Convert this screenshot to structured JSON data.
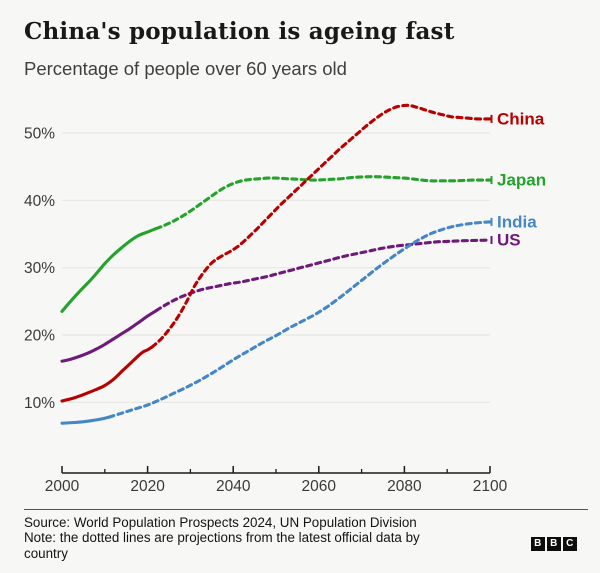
{
  "report": {
    "title": "China's population is ageing fast",
    "subtitle": "Percentage of people over 60 years old"
  },
  "footer": {
    "source": "Source: World Population Prospects 2024, UN Population Division",
    "note_lines": [
      "Note: the dotted lines are projections from the latest official data by",
      "country"
    ],
    "logo_letters": [
      "B",
      "B",
      "C"
    ]
  },
  "chart_data": {
    "type": "line",
    "title": "China's population is ageing fast",
    "ylabel": "Percentage of people over 60 years old",
    "x_range": [
      2000,
      2100
    ],
    "y_range": [
      10,
      50
    ],
    "grid": true,
    "legend_position": "right-edge-labels",
    "note": "Solid segments are historical data; dashed segments are projections.",
    "colors": {
      "grid": "#e6e6e2",
      "axis": "#1a1a1a",
      "tick_text": "#3a3a3a"
    },
    "y_ticks": [
      {
        "value": 10,
        "label": "10%"
      },
      {
        "value": 20,
        "label": "20%"
      },
      {
        "value": 30,
        "label": "30%"
      },
      {
        "value": 40,
        "label": "40%"
      },
      {
        "value": 50,
        "label": "50%"
      }
    ],
    "x_major_ticks": [
      {
        "value": 2000,
        "label": "2000"
      },
      {
        "value": 2020,
        "label": "2020"
      },
      {
        "value": 2040,
        "label": "2040"
      },
      {
        "value": 2060,
        "label": "2060"
      },
      {
        "value": 2080,
        "label": "2080"
      },
      {
        "value": 2100,
        "label": "2100"
      }
    ],
    "x_minor_ticks": [
      2010,
      2030,
      2050,
      2070,
      2090
    ],
    "series": [
      {
        "name": "US",
        "color": "#6f1a7a",
        "solid_until": 2022,
        "points": [
          [
            2000,
            16.1
          ],
          [
            2002,
            16.4
          ],
          [
            2004,
            16.8
          ],
          [
            2006,
            17.3
          ],
          [
            2008,
            17.9
          ],
          [
            2010,
            18.6
          ],
          [
            2012,
            19.4
          ],
          [
            2014,
            20.2
          ],
          [
            2016,
            21.0
          ],
          [
            2018,
            21.9
          ],
          [
            2020,
            22.8
          ],
          [
            2022,
            23.6
          ],
          [
            2024,
            24.4
          ],
          [
            2026,
            25.1
          ],
          [
            2028,
            25.7
          ],
          [
            2030,
            26.2
          ],
          [
            2033,
            26.8
          ],
          [
            2036,
            27.2
          ],
          [
            2039,
            27.6
          ],
          [
            2042,
            27.9
          ],
          [
            2045,
            28.3
          ],
          [
            2048,
            28.7
          ],
          [
            2051,
            29.2
          ],
          [
            2054,
            29.7
          ],
          [
            2057,
            30.2
          ],
          [
            2060,
            30.7
          ],
          [
            2063,
            31.2
          ],
          [
            2066,
            31.7
          ],
          [
            2069,
            32.1
          ],
          [
            2072,
            32.5
          ],
          [
            2075,
            32.9
          ],
          [
            2078,
            33.2
          ],
          [
            2081,
            33.4
          ],
          [
            2084,
            33.6
          ],
          [
            2087,
            33.8
          ],
          [
            2090,
            33.9
          ],
          [
            2094,
            34.0
          ],
          [
            2100,
            34.1
          ]
        ]
      },
      {
        "name": "Japan",
        "color": "#24a22c",
        "solid_until": 2022,
        "points": [
          [
            2000,
            23.5
          ],
          [
            2002,
            25.0
          ],
          [
            2004,
            26.4
          ],
          [
            2006,
            27.7
          ],
          [
            2008,
            29.1
          ],
          [
            2010,
            30.6
          ],
          [
            2012,
            31.9
          ],
          [
            2014,
            33.0
          ],
          [
            2016,
            34.0
          ],
          [
            2018,
            34.8
          ],
          [
            2020,
            35.3
          ],
          [
            2022,
            35.8
          ],
          [
            2024,
            36.3
          ],
          [
            2026,
            36.9
          ],
          [
            2028,
            37.6
          ],
          [
            2030,
            38.4
          ],
          [
            2032,
            39.3
          ],
          [
            2034,
            40.2
          ],
          [
            2036,
            41.1
          ],
          [
            2038,
            41.9
          ],
          [
            2040,
            42.5
          ],
          [
            2042,
            42.9
          ],
          [
            2044,
            43.1
          ],
          [
            2046,
            43.2
          ],
          [
            2048,
            43.3
          ],
          [
            2050,
            43.3
          ],
          [
            2053,
            43.2
          ],
          [
            2056,
            43.1
          ],
          [
            2059,
            43.0
          ],
          [
            2062,
            43.1
          ],
          [
            2065,
            43.2
          ],
          [
            2068,
            43.4
          ],
          [
            2071,
            43.5
          ],
          [
            2074,
            43.5
          ],
          [
            2077,
            43.4
          ],
          [
            2080,
            43.3
          ],
          [
            2083,
            43.1
          ],
          [
            2086,
            42.9
          ],
          [
            2089,
            42.9
          ],
          [
            2092,
            42.9
          ],
          [
            2096,
            43.0
          ],
          [
            2100,
            43.0
          ]
        ]
      },
      {
        "name": "India",
        "color": "#4586c6",
        "solid_until": 2011,
        "points": [
          [
            2000,
            6.9
          ],
          [
            2003,
            7.0
          ],
          [
            2006,
            7.2
          ],
          [
            2009,
            7.5
          ],
          [
            2011,
            7.8
          ],
          [
            2014,
            8.4
          ],
          [
            2017,
            9.0
          ],
          [
            2020,
            9.6
          ],
          [
            2023,
            10.4
          ],
          [
            2026,
            11.3
          ],
          [
            2029,
            12.2
          ],
          [
            2032,
            13.2
          ],
          [
            2035,
            14.3
          ],
          [
            2038,
            15.5
          ],
          [
            2041,
            16.7
          ],
          [
            2044,
            17.8
          ],
          [
            2047,
            18.9
          ],
          [
            2050,
            19.9
          ],
          [
            2053,
            21.0
          ],
          [
            2056,
            22.0
          ],
          [
            2059,
            23.0
          ],
          [
            2062,
            24.2
          ],
          [
            2065,
            25.6
          ],
          [
            2068,
            27.1
          ],
          [
            2071,
            28.6
          ],
          [
            2074,
            30.1
          ],
          [
            2077,
            31.5
          ],
          [
            2080,
            32.8
          ],
          [
            2083,
            34.0
          ],
          [
            2086,
            35.0
          ],
          [
            2089,
            35.7
          ],
          [
            2092,
            36.2
          ],
          [
            2096,
            36.6
          ],
          [
            2100,
            36.8
          ]
        ]
      },
      {
        "name": "China",
        "color": "#b80000",
        "solid_until": 2021,
        "points": [
          [
            2000,
            10.2
          ],
          [
            2002,
            10.5
          ],
          [
            2004,
            10.9
          ],
          [
            2006,
            11.4
          ],
          [
            2008,
            11.9
          ],
          [
            2010,
            12.5
          ],
          [
            2012,
            13.4
          ],
          [
            2014,
            14.6
          ],
          [
            2016,
            15.8
          ],
          [
            2018,
            17.0
          ],
          [
            2019,
            17.5
          ],
          [
            2020,
            17.8
          ],
          [
            2021,
            18.2
          ],
          [
            2023,
            19.3
          ],
          [
            2025,
            20.8
          ],
          [
            2027,
            22.6
          ],
          [
            2029,
            24.8
          ],
          [
            2031,
            27.3
          ],
          [
            2033,
            29.2
          ],
          [
            2035,
            30.7
          ],
          [
            2037,
            31.6
          ],
          [
            2039,
            32.3
          ],
          [
            2041,
            33.1
          ],
          [
            2043,
            34.2
          ],
          [
            2045,
            35.4
          ],
          [
            2047,
            36.7
          ],
          [
            2049,
            38.0
          ],
          [
            2051,
            39.3
          ],
          [
            2053,
            40.5
          ],
          [
            2055,
            41.7
          ],
          [
            2057,
            42.9
          ],
          [
            2059,
            44.1
          ],
          [
            2061,
            45.3
          ],
          [
            2063,
            46.5
          ],
          [
            2065,
            47.7
          ],
          [
            2067,
            48.8
          ],
          [
            2069,
            49.9
          ],
          [
            2071,
            51.0
          ],
          [
            2073,
            52.0
          ],
          [
            2075,
            52.9
          ],
          [
            2077,
            53.6
          ],
          [
            2079,
            54.0
          ],
          [
            2081,
            54.1
          ],
          [
            2083,
            53.8
          ],
          [
            2085,
            53.4
          ],
          [
            2087,
            53.0
          ],
          [
            2089,
            52.7
          ],
          [
            2091,
            52.4
          ],
          [
            2093,
            52.3
          ],
          [
            2095,
            52.2
          ],
          [
            2097,
            52.1
          ],
          [
            2100,
            52.1
          ]
        ]
      }
    ]
  }
}
